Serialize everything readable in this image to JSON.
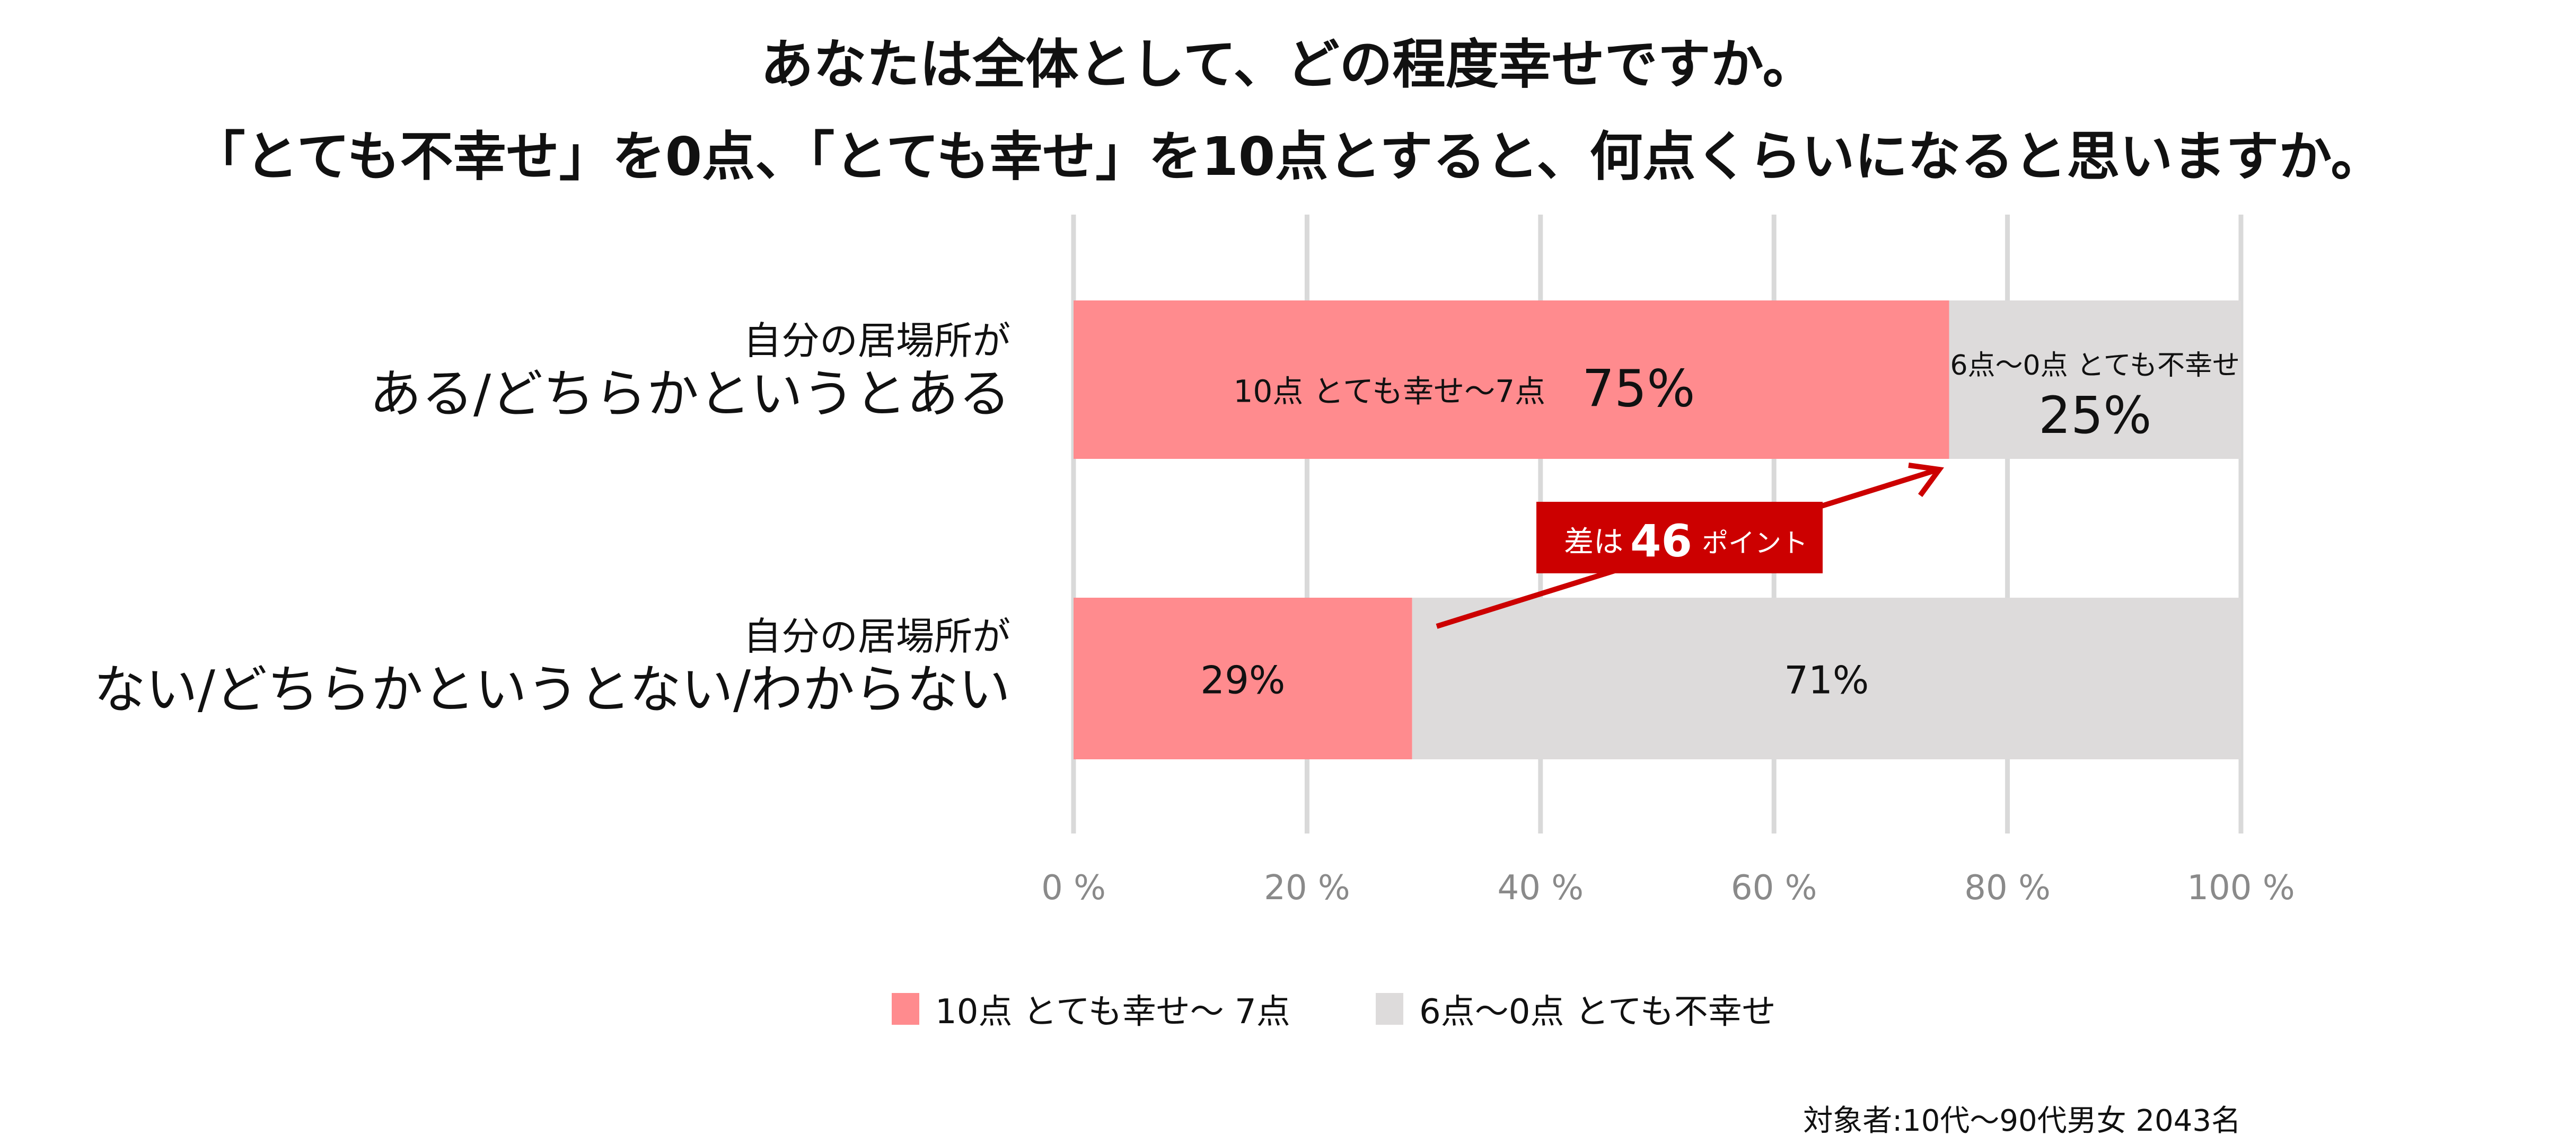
{
  "chart_data": {
    "type": "bar",
    "orientation": "horizontal",
    "stacked": true,
    "title": [
      "あなたは全体として、どの程度幸せですか。",
      "「とても不幸せ」を0点、「とても幸せ」を10点とすると、何点くらいになると思いますか。"
    ],
    "categories": [
      {
        "line1": "自分の居場所が",
        "line2": "ある/どちらかというとある"
      },
      {
        "line1": "自分の居場所が",
        "line2": "ない/どちらかというとない/わからない"
      }
    ],
    "series": [
      {
        "name": "10点 とても幸せ〜 7点",
        "color": "#ff8b8e",
        "values": [
          75,
          29
        ],
        "labels": [
          "75%",
          "29%"
        ],
        "inbar_caption": "10点 とても幸せ〜7点"
      },
      {
        "name": "6点〜0点 とても不幸せ",
        "color": "#dddbdb",
        "values": [
          25,
          71
        ],
        "labels": [
          "25%",
          "71%"
        ],
        "inbar_caption": "6点〜0点 とても不幸せ"
      }
    ],
    "xlim": [
      0,
      100
    ],
    "xticks": [
      0,
      20,
      40,
      60,
      80,
      100
    ],
    "xtick_labels": [
      "0 %",
      "20 %",
      "40 %",
      "60 %",
      "80 %",
      "100 %"
    ],
    "grid": true,
    "legend_position": "bottom",
    "annotation": {
      "prefix": "差は",
      "value": "46",
      "suffix": "ポイント",
      "color": "#cc0000"
    },
    "footnote": "対象者:10代〜90代男女 2043名"
  }
}
